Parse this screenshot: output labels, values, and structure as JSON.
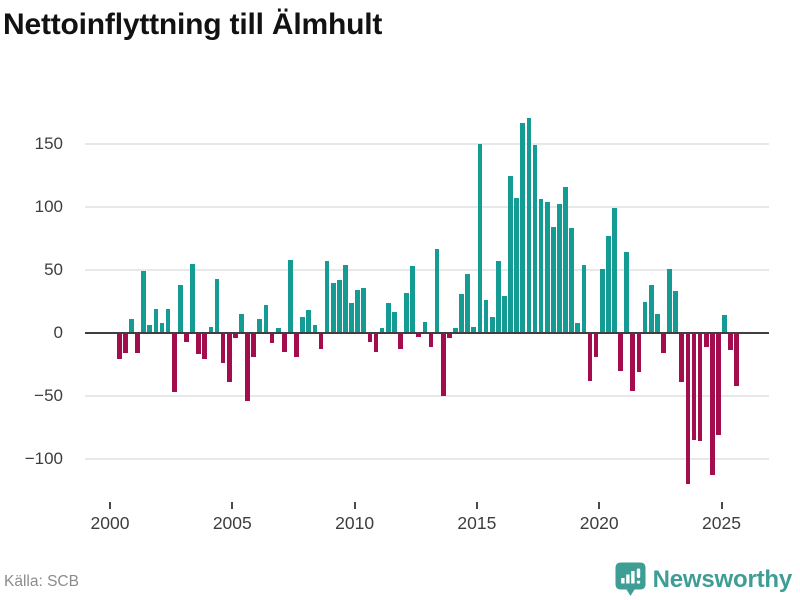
{
  "title": "Nettoinflyttning till Älmhult",
  "source": "Källa: SCB",
  "branding": {
    "logo_text": "Newsworthy",
    "logo_icon": "newsworthy-pin-barchart-icon"
  },
  "colors": {
    "positive_bar": "#149c94",
    "negative_bar": "#a30d4d",
    "gridline": "#e8e8e8",
    "zero_line": "#3f3f3f",
    "axis_text": "#3d3d3d",
    "title_text": "#121212",
    "source_text": "#8c8c8c",
    "brand_teal": "#3e9e96"
  },
  "chart_data": {
    "type": "bar",
    "title": "Nettoinflyttning till Älmhult",
    "xlabel": "",
    "ylabel": "",
    "frequency": "quarterly",
    "x_start": "2000-Q2",
    "x_end": "2025-Q3",
    "x_tick_labels": [
      "2000",
      "2005",
      "2010",
      "2015",
      "2020",
      "2025"
    ],
    "y_ticks": [
      150,
      100,
      50,
      0,
      -50,
      -100
    ],
    "y_tick_labels": [
      "150",
      "100",
      "50",
      "0",
      "−50",
      "−100"
    ],
    "ylim": [
      -130,
      180
    ],
    "grid": "horizontal",
    "legend": "none",
    "positive_color_meaning": "net in-migration",
    "negative_color_meaning": "net out-migration",
    "series": [
      {
        "name": "Nettoinflyttning",
        "values": [
          -20,
          -15,
          11,
          -15,
          49,
          6,
          19,
          8,
          19,
          -46,
          38,
          -6,
          55,
          -16,
          -20,
          5,
          43,
          -23,
          -38,
          -3,
          15,
          -53,
          -18,
          11,
          22,
          -7,
          4,
          -14,
          58,
          -18,
          13,
          18,
          6,
          -12,
          57,
          40,
          42,
          54,
          24,
          34,
          36,
          -6,
          -14,
          4,
          24,
          17,
          -12,
          32,
          53,
          -2,
          9,
          -10,
          67,
          -49,
          -3,
          4,
          31,
          47,
          5,
          150,
          26,
          13,
          57,
          29,
          125,
          107,
          167,
          171,
          149,
          106,
          104,
          84,
          102,
          116,
          83,
          8,
          54,
          -37,
          -18,
          51,
          77,
          99,
          -29,
          64,
          -45,
          -30,
          25,
          38,
          15,
          -15,
          51,
          33,
          -38,
          -119,
          -84,
          -85,
          -10,
          -112,
          -80,
          14,
          -13,
          -41
        ]
      }
    ]
  }
}
